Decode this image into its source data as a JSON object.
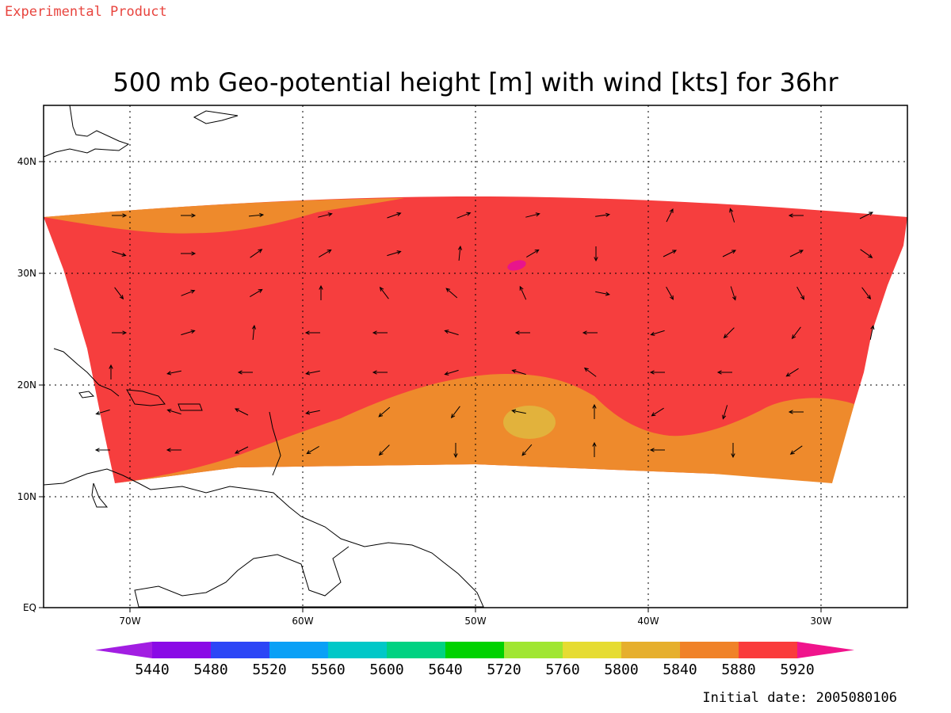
{
  "header": {
    "experimental_label": "Experimental Product",
    "title": "500 mb Geo-potential height [m] with wind [kts] for 36hr"
  },
  "colors": {
    "experimental": "#e8443e",
    "c5880": "#ee8a2c",
    "c5920": "#f63e3e",
    "c5920plus": "#e8148c",
    "c5840": "#e2b23c",
    "frame": "#000000"
  },
  "map": {
    "lon_range": [
      -75,
      -25
    ],
    "lat_range": [
      0,
      45
    ],
    "lon_ticks": [
      {
        "lon": -70,
        "label": "70W"
      },
      {
        "lon": -60,
        "label": "60W"
      },
      {
        "lon": -50,
        "label": "50W"
      },
      {
        "lon": -40,
        "label": "40W"
      },
      {
        "lon": -30,
        "label": "30W"
      }
    ],
    "lat_ticks": [
      {
        "lat": 40,
        "label": "40N"
      },
      {
        "lat": 30,
        "label": "30N"
      },
      {
        "lat": 20,
        "label": "20N"
      },
      {
        "lat": 10,
        "label": "10N"
      },
      {
        "lat": 0,
        "label": "EQ"
      }
    ],
    "grid_lines": "dotted",
    "wind_vectors": "arrows on regular grid"
  },
  "colorbar": {
    "levels": [
      "5440",
      "5480",
      "5520",
      "5560",
      "5600",
      "5640",
      "5720",
      "5760",
      "5800",
      "5840",
      "5880",
      "5920"
    ],
    "colors": [
      "#a21ee2",
      "#8a0ae6",
      "#2c46f6",
      "#0aa0f6",
      "#00c8c8",
      "#00d282",
      "#00d200",
      "#a0e632",
      "#e6dc32",
      "#e6af2d",
      "#f08228",
      "#fa3c3c",
      "#f0148c"
    ]
  },
  "footer": {
    "initial_date": "Initial date: 2005080106"
  }
}
